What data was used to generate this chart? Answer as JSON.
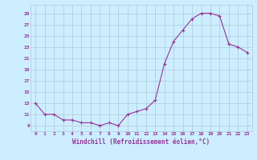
{
  "x": [
    0,
    1,
    2,
    3,
    4,
    5,
    6,
    7,
    8,
    9,
    10,
    11,
    12,
    13,
    14,
    15,
    16,
    17,
    18,
    19,
    20,
    21,
    22,
    23
  ],
  "y": [
    13,
    11,
    11,
    10,
    10,
    9.5,
    9.5,
    9,
    9.5,
    9,
    11,
    11.5,
    12,
    13.5,
    20,
    24,
    26,
    28,
    29,
    29,
    28.5,
    23.5,
    23,
    22
  ],
  "line_color": "#993399",
  "marker_color": "#993399",
  "bg_color": "#cceeff",
  "grid_color": "#b0c8d8",
  "xlabel": "Windchill (Refroidissement éolien,°C)",
  "yticks": [
    9,
    11,
    13,
    15,
    17,
    19,
    21,
    23,
    25,
    27,
    29
  ],
  "xticks": [
    0,
    1,
    2,
    3,
    4,
    5,
    6,
    7,
    8,
    9,
    10,
    11,
    12,
    13,
    14,
    15,
    16,
    17,
    18,
    19,
    20,
    21,
    22,
    23
  ],
  "ylim": [
    8.0,
    30.5
  ],
  "xlim": [
    -0.5,
    23.5
  ]
}
